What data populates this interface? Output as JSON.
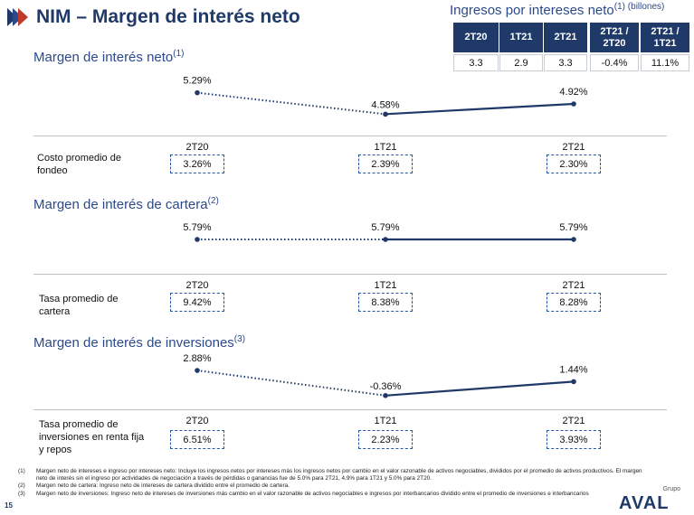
{
  "header": {
    "title": "NIM – Margen de interés neto",
    "chevron_colors": [
      "#1f3a68",
      "#2b4a8b",
      "#c0392b"
    ]
  },
  "ingresos_table": {
    "title": "Ingresos por intereses neto",
    "title_sup": "(1)",
    "title_unit": "(billones)",
    "headers": [
      "2T20",
      "1T21",
      "2T21",
      "2T21 /\n2T20",
      "2T21 /\n1T21"
    ],
    "values": [
      "3.3",
      "2.9",
      "3.3",
      "-0.4%",
      "11.1%"
    ]
  },
  "periods": [
    "2T20",
    "1T21",
    "2T21"
  ],
  "sections": [
    {
      "title": "Margen de interés neto",
      "sup": "(1)",
      "values": [
        5.29,
        4.58,
        4.92
      ],
      "labels": [
        "5.29%",
        "4.58%",
        "4.92%"
      ],
      "sub_label": "Costo promedio de\nfondeo",
      "sub_values": [
        "3.26%",
        "2.39%",
        "2.30%"
      ]
    },
    {
      "title": "Margen de interés de cartera",
      "sup": "(2)",
      "values": [
        5.79,
        5.79,
        5.79
      ],
      "labels": [
        "5.79%",
        "5.79%",
        "5.79%"
      ],
      "sub_label": "Tasa promedio de\ncartera",
      "sub_values": [
        "9.42%",
        "8.38%",
        "8.28%"
      ]
    },
    {
      "title": "Margen de interés de inversiones",
      "sup": "(3)",
      "values": [
        2.88,
        -0.36,
        1.44
      ],
      "labels": [
        "2.88%",
        "-0.36%",
        "1.44%"
      ],
      "sub_label": "Tasa promedio de\ninversiones en renta fija\ny repos",
      "sub_values": [
        "6.51%",
        "2.23%",
        "3.93%"
      ]
    }
  ],
  "chart_data": [
    {
      "type": "line",
      "title": "Margen de interés neto",
      "categories": [
        "2T20",
        "1T21",
        "2T21"
      ],
      "values": [
        5.29,
        4.58,
        4.92
      ],
      "unit": "%"
    },
    {
      "type": "line",
      "title": "Margen de interés de cartera",
      "categories": [
        "2T20",
        "1T21",
        "2T21"
      ],
      "values": [
        5.79,
        5.79,
        5.79
      ],
      "unit": "%"
    },
    {
      "type": "line",
      "title": "Margen de interés de inversiones",
      "categories": [
        "2T20",
        "1T21",
        "2T21"
      ],
      "values": [
        2.88,
        -0.36,
        1.44
      ],
      "unit": "%"
    }
  ],
  "footnotes": [
    {
      "n": "(1)",
      "text": "Margen neto de intereses e ingreso por intereses neto: Incluye los ingresos netos por intereses más los ingresos netos por cambio en el valor razonable de activos negociables, divididos por el promedio de activos productivos. El margen neto de interés sin el ingreso por actividades de negociación a través de pérdidas o ganancias fue de 5.0% para 2T21, 4.9% para 1T21 y 5.0% para 2T20."
    },
    {
      "n": "(2)",
      "text": "Margen neto de cartera: Ingreso neto de intereses de cartera dividido entre el promedio de cartera."
    },
    {
      "n": "(3)",
      "text": "Margen neto de inversiones: Ingreso neto de intereses de inversiones más cambio en el valor razonable de activos negociables e ingresos por interbancarios dividido entre el promedio de inversiones e interbancarios"
    }
  ],
  "page_number": "15",
  "logo": {
    "small": "Grupo",
    "main": "AVAL"
  },
  "colors": {
    "navy": "#1f3a68",
    "blue": "#2b4a8b",
    "line": "#1f3a68",
    "dash_box": "#2a56a6"
  }
}
